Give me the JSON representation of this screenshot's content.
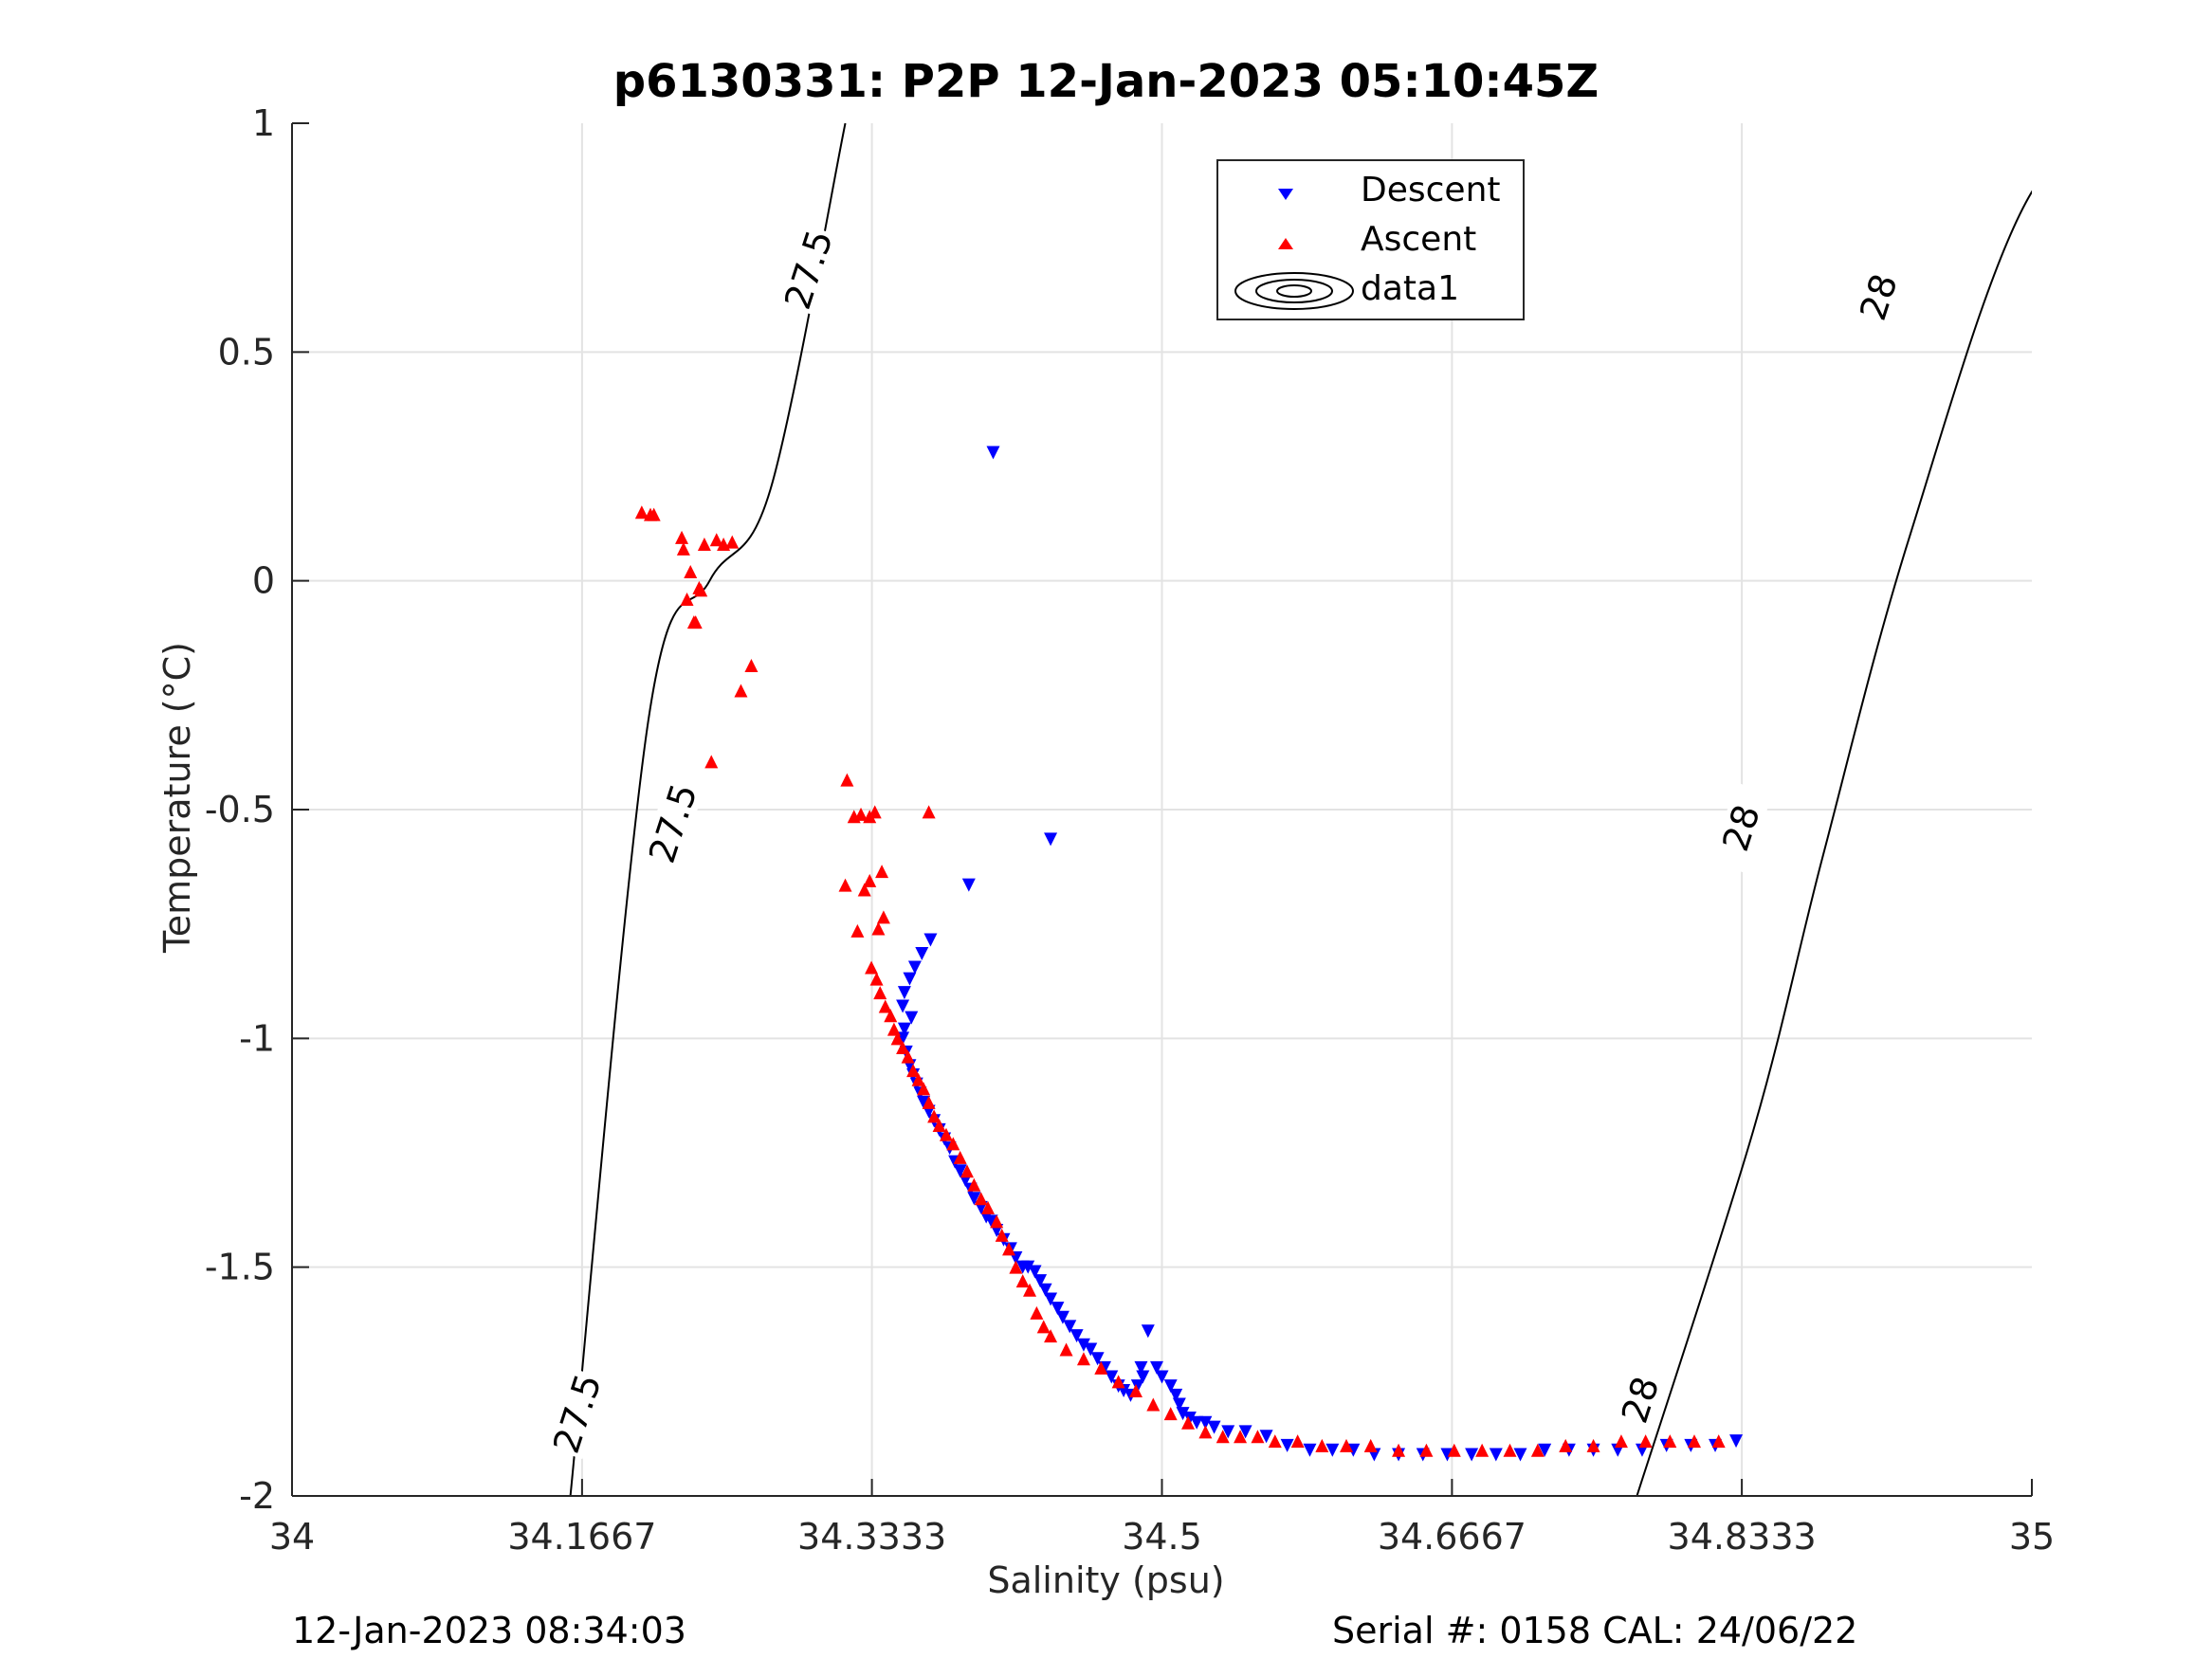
{
  "chart_data": {
    "type": "scatter",
    "title": "p6130331: P2P 12-Jan-2023 05:10:45Z",
    "xlabel": "Salinity (psu)",
    "ylabel": "Temperature (°C)",
    "xlim": [
      34,
      35
    ],
    "ylim": [
      -2,
      1
    ],
    "x_ticks": [
      "34",
      "34.1667",
      "34.3333",
      "34.5",
      "34.6667",
      "34.8333",
      "35"
    ],
    "x_tick_values": [
      34,
      34.1667,
      34.3333,
      34.5,
      34.6667,
      34.8333,
      35
    ],
    "y_ticks": [
      "-2",
      "-1.5",
      "-1",
      "-0.5",
      "0",
      "0.5",
      "1"
    ],
    "y_tick_values": [
      -2,
      -1.5,
      -1,
      -0.5,
      0,
      0.5,
      1
    ],
    "grid": true,
    "legend_position": "top-center",
    "series": [
      {
        "name": "Descent",
        "marker": "triangle-down",
        "color": "#0000ff",
        "x": [
          34.403,
          34.436,
          34.389,
          34.367,
          34.362,
          34.358,
          34.355,
          34.352,
          34.351,
          34.356,
          34.352,
          34.351,
          34.353,
          34.355,
          34.357,
          34.359,
          34.361,
          34.363,
          34.366,
          34.369,
          34.372,
          34.375,
          34.378,
          34.381,
          34.384,
          34.387,
          34.39,
          34.392,
          34.396,
          34.399,
          34.402,
          34.405,
          34.409,
          34.413,
          34.416,
          34.42,
          34.423,
          34.427,
          34.43,
          34.433,
          34.436,
          34.44,
          34.443,
          34.447,
          34.451,
          34.455,
          34.459,
          34.463,
          34.467,
          34.471,
          34.475,
          34.478,
          34.482,
          34.486,
          34.489,
          34.492,
          34.497,
          34.5,
          34.505,
          34.508,
          34.51,
          34.488,
          34.512,
          34.516,
          34.52,
          34.525,
          34.53,
          34.538,
          34.548,
          34.56,
          34.572,
          34.585,
          34.598,
          34.61,
          34.622,
          34.636,
          34.65,
          34.664,
          34.678,
          34.692,
          34.706,
          34.72,
          34.734,
          34.748,
          34.762,
          34.776,
          34.79,
          34.804,
          34.818,
          34.83
        ],
        "y": [
          0.28,
          -0.565,
          -0.665,
          -0.785,
          -0.815,
          -0.845,
          -0.87,
          -0.9,
          -0.93,
          -0.955,
          -0.98,
          -1.0,
          -1.03,
          -1.06,
          -1.08,
          -1.1,
          -1.12,
          -1.14,
          -1.16,
          -1.18,
          -1.2,
          -1.22,
          -1.24,
          -1.27,
          -1.29,
          -1.31,
          -1.33,
          -1.35,
          -1.37,
          -1.39,
          -1.4,
          -1.42,
          -1.44,
          -1.46,
          -1.48,
          -1.5,
          -1.5,
          -1.51,
          -1.53,
          -1.55,
          -1.57,
          -1.59,
          -1.61,
          -1.63,
          -1.65,
          -1.67,
          -1.68,
          -1.7,
          -1.72,
          -1.74,
          -1.76,
          -1.77,
          -1.78,
          -1.76,
          -1.74,
          -1.64,
          -1.72,
          -1.74,
          -1.76,
          -1.78,
          -1.8,
          -1.72,
          -1.82,
          -1.83,
          -1.84,
          -1.84,
          -1.85,
          -1.86,
          -1.86,
          -1.87,
          -1.89,
          -1.9,
          -1.9,
          -1.9,
          -1.91,
          -1.91,
          -1.91,
          -1.91,
          -1.91,
          -1.91,
          -1.91,
          -1.9,
          -1.9,
          -1.9,
          -1.9,
          -1.9,
          -1.89,
          -1.89,
          -1.89,
          -1.88
        ]
      },
      {
        "name": "Ascent",
        "marker": "triangle-up",
        "color": "#ff0000",
        "x": [
          34.201,
          34.206,
          34.208,
          34.224,
          34.225,
          34.229,
          34.232,
          34.235,
          34.237,
          34.227,
          34.231,
          34.234,
          34.244,
          34.248,
          34.253,
          34.258,
          34.264,
          34.241,
          34.319,
          34.323,
          34.327,
          34.332,
          34.335,
          34.366,
          34.339,
          34.332,
          34.329,
          34.318,
          34.325,
          34.337,
          34.34,
          34.333,
          34.336,
          34.338,
          34.341,
          34.344,
          34.346,
          34.348,
          34.351,
          34.354,
          34.357,
          34.36,
          34.363,
          34.366,
          34.369,
          34.372,
          34.376,
          34.38,
          34.384,
          34.388,
          34.392,
          34.396,
          34.4,
          34.405,
          34.408,
          34.412,
          34.416,
          34.42,
          34.424,
          34.428,
          34.432,
          34.436,
          34.445,
          34.455,
          34.465,
          34.475,
          34.485,
          34.495,
          34.505,
          34.515,
          34.525,
          34.535,
          34.545,
          34.555,
          34.565,
          34.578,
          34.592,
          34.606,
          34.62,
          34.636,
          34.652,
          34.668,
          34.684,
          34.7,
          34.716,
          34.732,
          34.748,
          34.764,
          34.778,
          34.792,
          34.806,
          34.82
        ],
        "y": [
          0.15,
          0.145,
          0.145,
          0.095,
          0.07,
          0.02,
          -0.09,
          -0.02,
          0.08,
          -0.04,
          -0.09,
          -0.015,
          0.09,
          0.08,
          0.085,
          -0.24,
          -0.185,
          -0.395,
          -0.435,
          -0.515,
          -0.51,
          -0.515,
          -0.505,
          -0.505,
          -0.635,
          -0.655,
          -0.675,
          -0.665,
          -0.765,
          -0.76,
          -0.735,
          -0.845,
          -0.87,
          -0.9,
          -0.93,
          -0.95,
          -0.98,
          -1.0,
          -1.02,
          -1.04,
          -1.07,
          -1.09,
          -1.11,
          -1.14,
          -1.17,
          -1.19,
          -1.21,
          -1.23,
          -1.26,
          -1.29,
          -1.32,
          -1.35,
          -1.37,
          -1.4,
          -1.43,
          -1.46,
          -1.5,
          -1.53,
          -1.55,
          -1.6,
          -1.63,
          -1.65,
          -1.68,
          -1.7,
          -1.72,
          -1.75,
          -1.77,
          -1.8,
          -1.82,
          -1.84,
          -1.86,
          -1.87,
          -1.87,
          -1.87,
          -1.88,
          -1.88,
          -1.89,
          -1.89,
          -1.89,
          -1.9,
          -1.9,
          -1.9,
          -1.9,
          -1.9,
          -1.9,
          -1.89,
          -1.89,
          -1.88,
          -1.88,
          -1.88,
          -1.88,
          -1.88
        ]
      }
    ],
    "contours": [
      {
        "name": "data1",
        "level_label": "27.5",
        "points": [
          [
            34.16,
            -2.0
          ],
          [
            34.205,
            -0.3
          ],
          [
            34.24,
            0.0
          ],
          [
            34.275,
            0.2
          ],
          [
            34.318,
            1.0
          ]
        ],
        "label_positions": [
          [
            34.164,
            -1.82
          ],
          [
            34.219,
            -0.53
          ],
          [
            34.297,
            0.68
          ]
        ]
      },
      {
        "name": "data1",
        "level_label": "28",
        "points": [
          [
            34.773,
            -2.0
          ],
          [
            34.84,
            -1.2
          ],
          [
            34.88,
            -0.6
          ],
          [
            34.93,
            0.1
          ],
          [
            35.0,
            0.85
          ],
          [
            35.072,
            1.0
          ]
        ],
        "label_positions": [
          [
            34.775,
            -1.79
          ],
          [
            34.833,
            -0.54
          ],
          [
            34.912,
            0.62
          ]
        ]
      }
    ]
  },
  "legend": {
    "entries": [
      {
        "label": "Descent",
        "icon": "triangle-down-marker-icon",
        "color": "#0000ff"
      },
      {
        "label": "Ascent",
        "icon": "triangle-up-marker-icon",
        "color": "#ff0000"
      },
      {
        "label": "data1",
        "icon": "contour-ellipses-icon",
        "color": "#000000"
      }
    ]
  },
  "footer": {
    "left_text": "12-Jan-2023 08:34:03",
    "right_text": "Serial #: 0158  CAL: 24/06/22"
  }
}
